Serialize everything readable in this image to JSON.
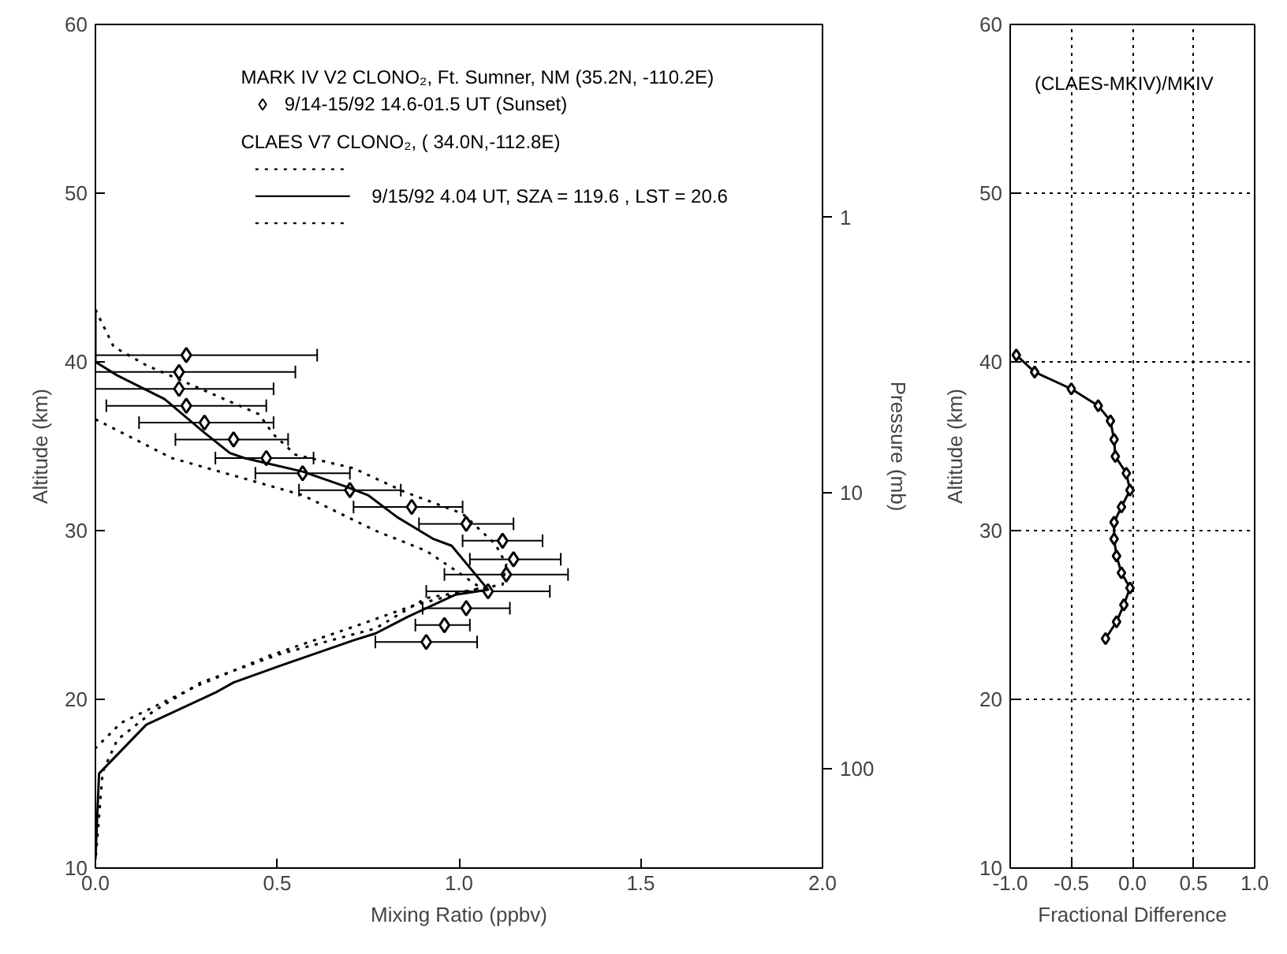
{
  "chart_data": [
    {
      "type": "scatter",
      "xlabel": "Mixing Ratio (ppbv)",
      "ylabel": "Altitude (km)",
      "y2label": "Pressure (mb)",
      "xlim": [
        0,
        2
      ],
      "ylim": [
        10,
        60
      ],
      "xticks": [
        {
          "value": 0,
          "label": "0.0"
        },
        0.5,
        {
          "value": 1,
          "label": "1.0"
        },
        1.5,
        {
          "value": 2,
          "label": "2.0"
        }
      ],
      "yticks": [
        10,
        20,
        30,
        40,
        50,
        60
      ],
      "y2lim": [
        229,
        0.2
      ],
      "y2ticks": [
        1,
        10,
        100
      ],
      "log": "y2",
      "legend": "top",
      "marker": "diamond",
      "annotations": [
        "MARK IV V2 CLONO₂, Ft. Sumner, NM (35.2N, -110.2E)",
        "CLAES V7 CLONO₂, ( 34.0N,-112.8E)"
      ],
      "series": [
        {
          "type": "scatter",
          "name": "9/14-15/92  14.6-01.5 UT (Sunset)",
          "color": "#000000",
          "x": [
            0.25,
            0.23,
            0.23,
            0.25,
            0.3,
            0.38,
            0.47,
            0.57,
            0.7,
            0.87,
            1.02,
            1.12,
            1.15,
            1.13,
            1.08,
            1.02,
            0.96,
            0.91
          ],
          "values": [
            40.4,
            39.4,
            38.4,
            37.4,
            36.4,
            35.4,
            34.3,
            33.4,
            32.4,
            31.4,
            30.4,
            29.4,
            28.3,
            27.4,
            26.4,
            25.4,
            24.4,
            23.4
          ],
          "xerrors": [
            [
              0.0,
              0.61
            ],
            [
              0.0,
              0.55
            ],
            [
              0.0,
              0.49
            ],
            [
              0.03,
              0.47
            ],
            [
              0.12,
              0.49
            ],
            [
              0.22,
              0.53
            ],
            [
              0.33,
              0.6
            ],
            [
              0.44,
              0.7
            ],
            [
              0.56,
              0.84
            ],
            [
              0.71,
              1.01
            ],
            [
              0.89,
              1.15
            ],
            [
              1.01,
              1.23
            ],
            [
              1.03,
              1.28
            ],
            [
              0.96,
              1.3
            ],
            [
              0.91,
              1.25
            ],
            [
              0.9,
              1.14
            ],
            [
              0.88,
              1.03
            ],
            [
              0.77,
              1.05
            ]
          ]
        },
        {
          "type": "line",
          "line_style": "dotted",
          "marker": "none",
          "color": "#000000",
          "x": [
            0.0,
            0.05,
            0.14,
            0.45,
            0.49,
            0.55,
            0.71,
            0.85,
            1.01,
            1.1,
            1.13,
            1.12,
            0.91,
            0.77,
            0.51,
            0.29,
            0.16,
            0.06,
            0.02,
            0.0
          ],
          "values": [
            43.1,
            40.9,
            39.8,
            36.9,
            35.7,
            34.5,
            33.7,
            32.3,
            31.0,
            29.2,
            28.0,
            26.8,
            26.0,
            24.2,
            22.7,
            21.0,
            19.3,
            17.6,
            15.7,
            10.4
          ]
        },
        {
          "type": "line",
          "line_style": "solid",
          "marker": "none",
          "name": "9/15/92   4.04 UT, SZA = 119.6 , LST =  20.6",
          "color": "#000000",
          "x": [
            0.0,
            0.0,
            0.06,
            0.19,
            0.3,
            0.37,
            0.41,
            0.57,
            0.69,
            0.75,
            0.83,
            0.93,
            0.98,
            1.08,
            0.99,
            0.86,
            0.77,
            0.71,
            0.51,
            0.38,
            0.33,
            0.14,
            0.01,
            0.0
          ],
          "values": [
            43.0,
            40.0,
            39.2,
            37.8,
            35.8,
            34.6,
            34.3,
            33.5,
            32.6,
            32.1,
            30.8,
            29.5,
            29.1,
            26.5,
            26.2,
            24.9,
            23.9,
            23.5,
            22.0,
            21.0,
            20.4,
            18.5,
            15.6,
            10.5
          ]
        },
        {
          "type": "line",
          "line_style": "dotted",
          "marker": "none",
          "color": "#000000",
          "x": [
            0.0,
            0.21,
            0.44,
            0.57,
            0.77,
            0.91,
            1.0,
            1.06,
            0.88,
            0.71,
            0.48,
            0.28,
            0.07,
            0.0
          ],
          "values": [
            36.6,
            34.3,
            32.9,
            32.1,
            30.0,
            28.8,
            27.5,
            26.6,
            25.6,
            24.3,
            22.6,
            20.8,
            18.6,
            17.1
          ]
        }
      ]
    },
    {
      "type": "line",
      "xlabel": "Fractional Difference",
      "ylabel": "Altitude (km)",
      "xlim": [
        -1,
        1
      ],
      "ylim": [
        10,
        60
      ],
      "xticks": [
        {
          "value": -1,
          "label": "-1.0"
        },
        -0.5,
        {
          "value": 0,
          "label": "0.0"
        },
        0.5,
        {
          "value": 1,
          "label": "1.0"
        }
      ],
      "yticks": [
        10,
        20,
        30,
        40,
        50,
        60
      ],
      "grid": true,
      "marker": "diamond",
      "annotations": [
        "(CLAES-MKIV)/MKIV"
      ],
      "series": [
        {
          "color": "#000000",
          "x": [
            -0.95,
            -0.8,
            -0.5,
            -0.28,
            -0.18,
            -0.15,
            -0.14,
            -0.05,
            -0.02,
            -0.09,
            -0.15,
            -0.15,
            -0.13,
            -0.09,
            -0.02,
            -0.07,
            -0.13,
            -0.22
          ],
          "values": [
            40.4,
            39.4,
            38.4,
            37.4,
            36.5,
            35.4,
            34.4,
            33.4,
            32.4,
            31.4,
            30.5,
            29.5,
            28.5,
            27.5,
            26.6,
            25.6,
            24.6,
            23.6
          ]
        }
      ]
    }
  ]
}
